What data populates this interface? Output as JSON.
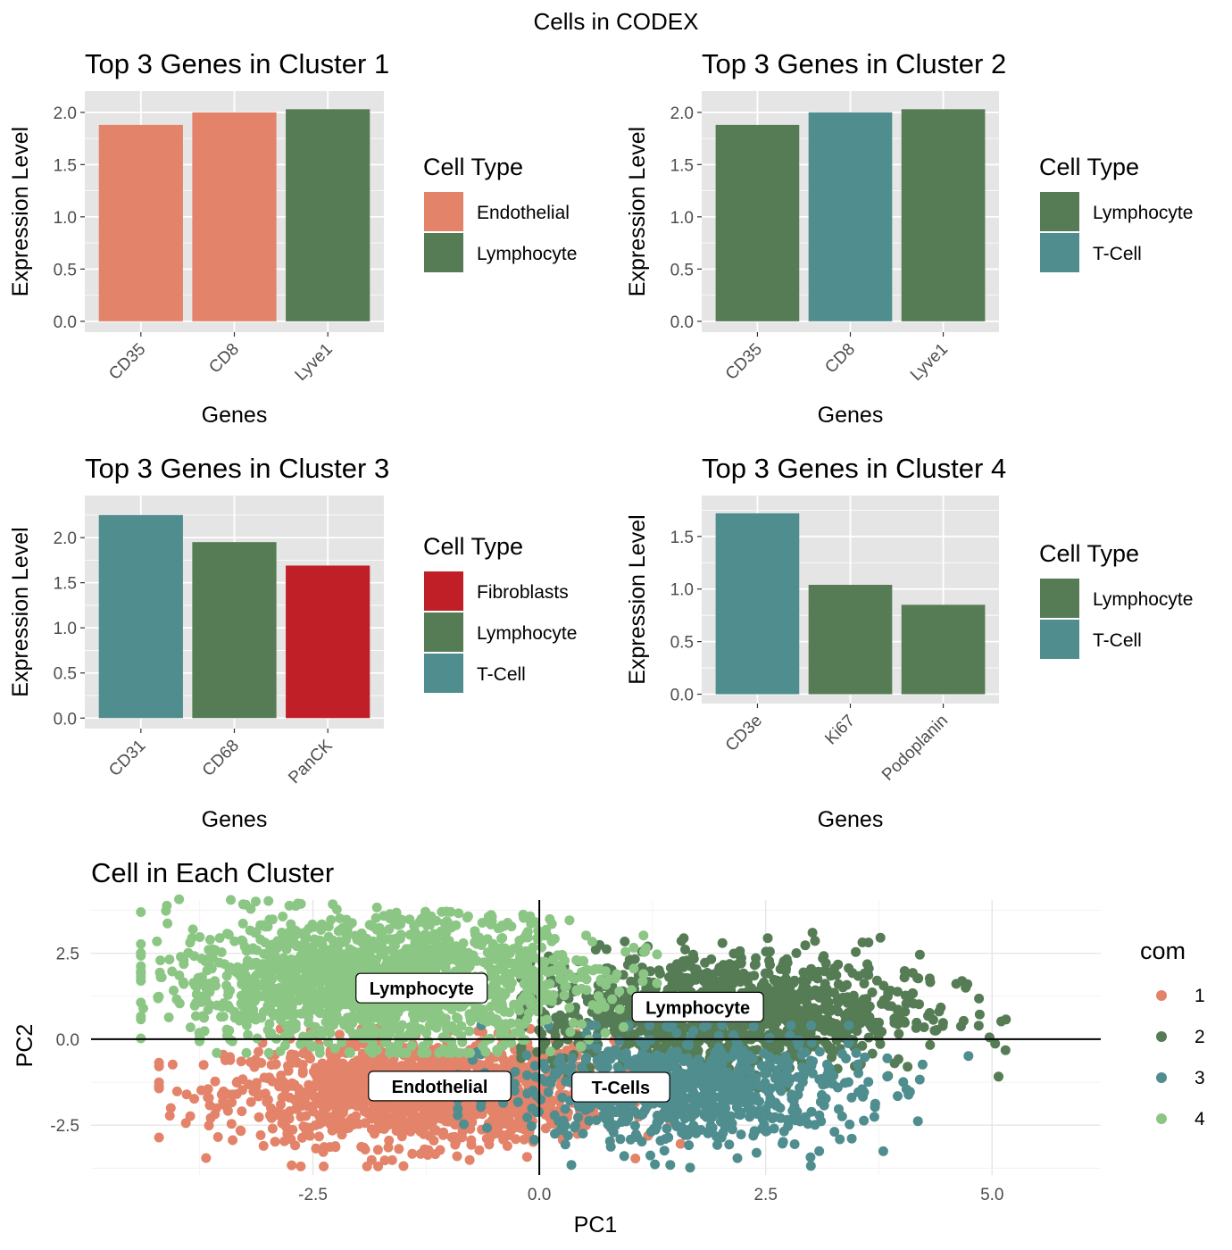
{
  "figure": {
    "title": "Cells in CODEX"
  },
  "colors": {
    "Endothelial": "#E3836A",
    "Lymphocyte": "#557C55",
    "T-Cell": "#4F8D8F",
    "Fibroblasts": "#C01F27",
    "com1": "#E3836A",
    "com2": "#557C55",
    "com3": "#4F8D8F",
    "com4": "#8CC685",
    "panel_bg": "#E5E5E5",
    "grid": "#FFFFFF"
  },
  "chart_data": [
    {
      "type": "bar",
      "title": "Top 3 Genes in Cluster 1",
      "xlabel": "Genes",
      "ylabel": "Expression Level",
      "categories": [
        "CD35",
        "CD8",
        "Lyve1"
      ],
      "values": [
        1.88,
        2.0,
        2.03
      ],
      "fill": [
        "Endothelial",
        "Endothelial",
        "Lymphocyte"
      ],
      "ylim": [
        0,
        2.1
      ],
      "yticks": [
        "0.0",
        "0.5",
        "1.0",
        "1.5",
        "2.0"
      ],
      "legend": {
        "title": "Cell Type",
        "entries": [
          "Endothelial",
          "Lymphocyte"
        ]
      }
    },
    {
      "type": "bar",
      "title": "Top 3 Genes in Cluster 2",
      "xlabel": "Genes",
      "ylabel": "Expression Level",
      "categories": [
        "CD35",
        "CD8",
        "Lyve1"
      ],
      "values": [
        1.88,
        2.0,
        2.03
      ],
      "fill": [
        "Lymphocyte",
        "T-Cell",
        "Lymphocyte"
      ],
      "ylim": [
        0,
        2.1
      ],
      "yticks": [
        "0.0",
        "0.5",
        "1.0",
        "1.5",
        "2.0"
      ],
      "legend": {
        "title": "Cell Type",
        "entries": [
          "Lymphocyte",
          "T-Cell"
        ]
      }
    },
    {
      "type": "bar",
      "title": "Top 3 Genes in Cluster 3",
      "xlabel": "Genes",
      "ylabel": "Expression Level",
      "categories": [
        "CD31",
        "CD68",
        "PanCK"
      ],
      "values": [
        2.25,
        1.95,
        1.69
      ],
      "fill": [
        "T-Cell",
        "Lymphocyte",
        "Fibroblasts"
      ],
      "ylim": [
        0,
        2.35
      ],
      "yticks": [
        "0.0",
        "0.5",
        "1.0",
        "1.5",
        "2.0"
      ],
      "legend": {
        "title": "Cell Type",
        "entries": [
          "Fibroblasts",
          "Lymphocyte",
          "T-Cell"
        ]
      }
    },
    {
      "type": "bar",
      "title": "Top 3 Genes in Cluster 4",
      "xlabel": "Genes",
      "ylabel": "Expression Level",
      "categories": [
        "CD3e",
        "Ki67",
        "Podoplanin"
      ],
      "values": [
        1.72,
        1.04,
        0.85
      ],
      "fill": [
        "T-Cell",
        "Lymphocyte",
        "Lymphocyte"
      ],
      "ylim": [
        0,
        1.8
      ],
      "yticks": [
        "0.0",
        "0.5",
        "1.0",
        "1.5"
      ],
      "legend": {
        "title": "Cell Type",
        "entries": [
          "Lymphocyte",
          "T-Cell"
        ]
      }
    },
    {
      "type": "scatter",
      "title": "Cell in Each Cluster",
      "xlabel": "PC1",
      "ylabel": "PC2",
      "xlim": [
        -4.95,
        6.2
      ],
      "ylim": [
        -3.95,
        4.05
      ],
      "xticks": [
        "-2.5",
        "0.0",
        "2.5",
        "5.0"
      ],
      "yticks": [
        "-2.5",
        "0.0",
        "2.5"
      ],
      "legend": {
        "title": "com",
        "entries": [
          "1",
          "2",
          "3",
          "4"
        ]
      },
      "annotations": [
        {
          "label": "Lymphocyte",
          "x": -1.3,
          "y": 1.5
        },
        {
          "label": "Lymphocyte",
          "x": 1.75,
          "y": 0.95
        },
        {
          "label": "Endothelial",
          "x": -1.1,
          "y": -1.35
        },
        {
          "label": "T-Cells",
          "x": 0.9,
          "y": -1.38
        }
      ],
      "clusters": [
        {
          "com": "1",
          "center": [
            -1.3,
            -1.55
          ],
          "spread": [
            1.05,
            0.75
          ],
          "range_x": [
            -4.2,
            2.3
          ],
          "range_y": [
            -3.7,
            0.3
          ],
          "n": 1400
        },
        {
          "com": "2",
          "center": [
            2.1,
            0.75
          ],
          "spread": [
            1.05,
            0.85
          ],
          "range_x": [
            -0.2,
            5.7
          ],
          "range_y": [
            -1.9,
            3.1
          ],
          "n": 1250
        },
        {
          "com": "3",
          "center": [
            1.6,
            -1.45
          ],
          "spread": [
            0.95,
            0.8
          ],
          "range_x": [
            -0.9,
            5.1
          ],
          "range_y": [
            -3.85,
            0.4
          ],
          "n": 800
        },
        {
          "com": "4",
          "center": [
            -1.7,
            1.7
          ],
          "spread": [
            1.15,
            0.95
          ],
          "range_x": [
            -4.4,
            1.3
          ],
          "range_y": [
            -0.4,
            4.5
          ],
          "n": 1600
        }
      ]
    }
  ]
}
